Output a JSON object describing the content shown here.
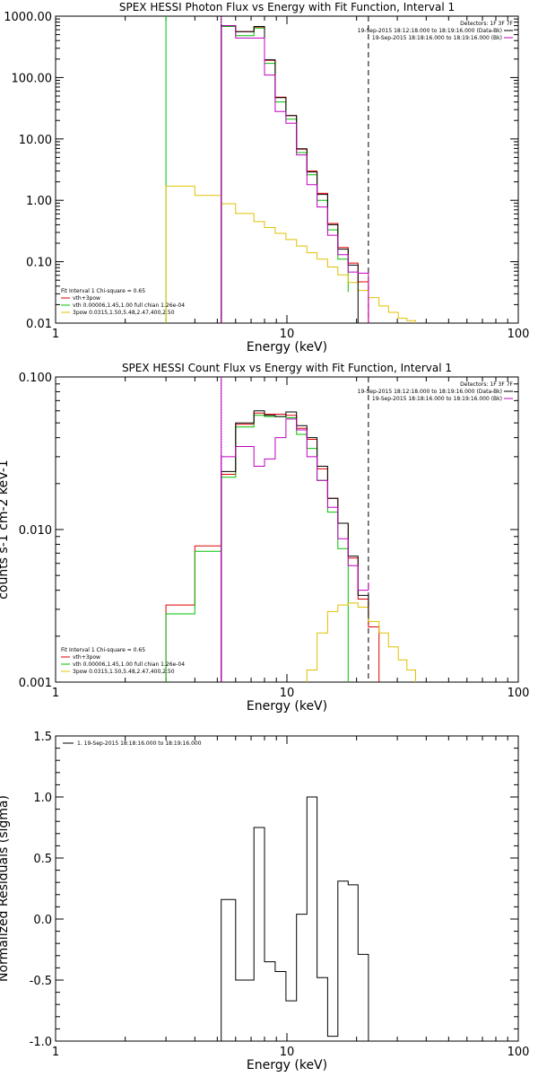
{
  "chart_data": [
    {
      "type": "line",
      "title": "SPEX HESSI Photon Flux vs Energy with Fit Function, Interval 1",
      "xlabel": "Energy (keV)",
      "xscale": "log",
      "yscale": "log",
      "xlim": [
        1,
        100
      ],
      "ylim": [
        0.01,
        1000
      ],
      "xticks": [
        "1",
        "10",
        "100"
      ],
      "yticks": [
        {
          "v": 1000,
          "label": "1000.00"
        },
        {
          "v": 100,
          "label": "100.00"
        },
        {
          "v": 10,
          "label": "10.00"
        },
        {
          "v": 1,
          "label": "1.00"
        },
        {
          "v": 0.1,
          "label": "0.10"
        },
        {
          "v": 0.01,
          "label": "0.01"
        }
      ],
      "vlines": [
        {
          "x": 3.0,
          "color": "#00c000",
          "style": "solid"
        },
        {
          "x": 5.2,
          "color": "#c000c0",
          "style": "solid"
        },
        {
          "x": 5.2,
          "color": "#000000",
          "style": "dotted"
        },
        {
          "x": 22.5,
          "color": "#000000",
          "style": "dashed"
        }
      ],
      "legend_top": [
        {
          "text": "Detectors: 1F 3F 7F",
          "color": "",
          "line": false
        },
        {
          "text": "19-Sep-2015 18:12:18.000 to 18:19:16.000 (Data-Bk)",
          "color": "#000000",
          "line": true
        },
        {
          "text": "19-Sep-2015 18:18:16.000 to 18:19:16.000 (Bk)",
          "color": "#c000c0",
          "line": true
        }
      ],
      "legend_bottom": [
        {
          "text": "Fit Interval 1    Chi-square = 0.65",
          "color": "",
          "line": false
        },
        {
          "text": "vth+3pow",
          "color": "#e00000",
          "line": true
        },
        {
          "text": "vth 0.00006,1.45,1.00  full chian 1.26e-04",
          "color": "#00c000",
          "line": true
        },
        {
          "text": "3pow 0.0315,1.50,5.48,2.47,400,2.50",
          "color": "#e0c000",
          "line": true
        }
      ],
      "series": [
        {
          "name": "vth+3pow",
          "color": "#e00000",
          "edges": [
            5.2,
            6.0,
            7.2,
            8.0,
            8.9,
            9.9,
            11.0,
            12.2,
            13.5,
            15.0,
            16.6,
            18.4,
            20.3,
            22.5
          ],
          "values": [
            680,
            560,
            650,
            190,
            48,
            24,
            6.8,
            3.0,
            1.3,
            0.42,
            0.17,
            0.095,
            0.047
          ]
        },
        {
          "name": "vth",
          "color": "#00c000",
          "edges": [
            5.2,
            6.0,
            7.2,
            8.0,
            8.9,
            9.9,
            11.0,
            12.2,
            13.5,
            15.0,
            16.6,
            18.4
          ],
          "values": [
            680,
            480,
            640,
            170,
            40,
            21,
            6.0,
            2.6,
            1.0,
            0.33,
            0.11,
            0.032
          ]
        },
        {
          "name": "3pow",
          "color": "#e0c000",
          "edges": [
            3.0,
            4.0,
            5.2,
            6.0,
            7.2,
            8.0,
            8.9,
            9.9,
            11.0,
            12.2,
            13.5,
            15.0,
            16.6,
            18.4,
            20.3,
            22.5,
            25.0,
            27.5,
            30.3,
            33.0,
            36.0
          ],
          "values": [
            1.7,
            1.2,
            0.88,
            0.61,
            0.45,
            0.36,
            0.29,
            0.23,
            0.18,
            0.14,
            0.11,
            0.082,
            0.061,
            0.046,
            0.034,
            0.026,
            0.019,
            0.015,
            0.012,
            0.011
          ]
        },
        {
          "name": "Data-Bk",
          "color": "#000000",
          "edges": [
            5.2,
            6.0,
            7.2,
            8.0,
            8.9,
            9.9,
            11.0,
            12.2,
            13.5,
            15.0,
            16.6,
            18.4,
            20.3
          ],
          "values": [
            700,
            560,
            680,
            195,
            47,
            24,
            6.9,
            2.9,
            1.25,
            0.4,
            0.16,
            0.088
          ]
        },
        {
          "name": "Bk",
          "color": "#c000c0",
          "edges": [
            5.2,
            6.0,
            7.2,
            8.0,
            8.9,
            9.9,
            11.0,
            12.2,
            13.5,
            15.0,
            16.6,
            18.4,
            20.3,
            22.5
          ],
          "values": [
            700,
            440,
            440,
            110,
            28,
            18,
            5.5,
            1.8,
            0.78,
            0.27,
            0.13,
            0.068,
            0.065
          ]
        }
      ]
    },
    {
      "type": "line",
      "title": "SPEX HESSI Count Flux vs Energy with Fit Function, Interval 1",
      "xlabel": "Energy (keV)",
      "ylabel": "counts s-1 cm-2 keV-1",
      "xscale": "log",
      "yscale": "log",
      "xlim": [
        1,
        100
      ],
      "ylim": [
        0.001,
        0.1
      ],
      "xticks": [
        "1",
        "10",
        "100"
      ],
      "yticks": [
        {
          "v": 0.1,
          "label": "0.100"
        },
        {
          "v": 0.01,
          "label": "0.010"
        },
        {
          "v": 0.001,
          "label": "0.001"
        }
      ],
      "vlines": [
        {
          "x": 5.2,
          "color": "#000000",
          "style": "dotted"
        },
        {
          "x": 5.2,
          "color": "#c000c0",
          "style": "solid"
        },
        {
          "x": 22.5,
          "color": "#000000",
          "style": "dashed"
        }
      ],
      "legend_top": [
        {
          "text": "Detectors: 1F 3F 7F",
          "color": "",
          "line": false
        },
        {
          "text": "19-Sep-2015 18:12:18.000 to 18:19:16.000 (Data-Bk)",
          "color": "#000000",
          "line": true
        },
        {
          "text": "19-Sep-2015 18:18:16.000 to 18:19:16.000 (Bk)",
          "color": "#c000c0",
          "line": true
        }
      ],
      "legend_bottom": [
        {
          "text": "Fit Interval 1    Chi-square = 0.65",
          "color": "",
          "line": false
        },
        {
          "text": "vth+3pow",
          "color": "#e00000",
          "line": true
        },
        {
          "text": "vth 0.00006,1.45,1.00  full chian 1.26e-04",
          "color": "#00c000",
          "line": true
        },
        {
          "text": "3pow 0.0315,1.50,5.48,2.47,400,2.50",
          "color": "#e0c000",
          "line": true
        }
      ],
      "series": [
        {
          "name": "vth+3pow",
          "color": "#e00000",
          "edges": [
            3.0,
            4.0,
            5.2,
            6.0,
            7.2,
            8.0,
            8.9,
            9.9,
            11.0,
            12.2,
            13.5,
            15.0,
            16.6,
            18.4,
            20.3,
            22.5,
            25.0
          ],
          "values": [
            0.0032,
            0.0078,
            0.023,
            0.049,
            0.058,
            0.057,
            0.057,
            0.056,
            0.046,
            0.039,
            0.025,
            0.016,
            0.011,
            0.0065,
            0.0035,
            0.0023
          ]
        },
        {
          "name": "vth",
          "color": "#00c000",
          "edges": [
            3.0,
            4.0,
            5.2,
            6.0,
            7.2,
            8.0,
            8.9,
            9.9,
            11.0,
            12.2,
            13.5,
            15.0,
            16.6,
            18.4
          ],
          "values": [
            0.0028,
            0.0072,
            0.022,
            0.047,
            0.056,
            0.055,
            0.055,
            0.054,
            0.042,
            0.034,
            0.021,
            0.013,
            0.0075
          ]
        },
        {
          "name": "3pow",
          "color": "#e0c000",
          "edges": [
            12.2,
            13.5,
            15.0,
            16.6,
            18.4,
            20.3,
            22.5,
            25.0,
            27.5,
            30.3,
            33.0,
            36.0
          ],
          "values": [
            0.0012,
            0.0021,
            0.0029,
            0.0032,
            0.0033,
            0.0031,
            0.0025,
            0.0021,
            0.0017,
            0.0014,
            0.0012
          ]
        },
        {
          "name": "Data-Bk",
          "color": "#000000",
          "edges": [
            5.2,
            6.0,
            7.2,
            8.0,
            8.9,
            9.9,
            11.0,
            12.2,
            13.5,
            15.0,
            16.6,
            18.4,
            20.3,
            22.5
          ],
          "values": [
            0.024,
            0.05,
            0.06,
            0.056,
            0.055,
            0.059,
            0.048,
            0.04,
            0.026,
            0.016,
            0.011,
            0.0067,
            0.0037,
            0.0026
          ]
        },
        {
          "name": "Bk",
          "color": "#c000c0",
          "edges": [
            5.2,
            6.0,
            7.2,
            8.0,
            8.9,
            9.9,
            11.0,
            12.2,
            13.5,
            15.0,
            16.6,
            18.4,
            20.3,
            22.5
          ],
          "values": [
            0.03,
            0.035,
            0.026,
            0.029,
            0.04,
            0.053,
            0.045,
            0.03,
            0.021,
            0.014,
            0.0087,
            0.0058,
            0.004,
            0.0045
          ]
        }
      ]
    },
    {
      "type": "line",
      "title": "",
      "xlabel": "Energy (keV)",
      "ylabel": "Normalized Residuals (sigma)",
      "xscale": "log",
      "yscale": "linear",
      "xlim": [
        1,
        100
      ],
      "ylim": [
        -1.0,
        1.5
      ],
      "xticks": [
        "1",
        "10",
        "100"
      ],
      "yticks": [
        {
          "v": 1.5,
          "label": "1.5"
        },
        {
          "v": 1.0,
          "label": "1.0"
        },
        {
          "v": 0.5,
          "label": "0.5"
        },
        {
          "v": 0.0,
          "label": "0.0"
        },
        {
          "v": -0.5,
          "label": "-0.5"
        },
        {
          "v": -1.0,
          "label": "-1.0"
        }
      ],
      "legend_top": [
        {
          "text": "1. 19-Sep-2015 18:18:16.000 to 18:19:16.000",
          "color": "#000000",
          "line": true
        }
      ],
      "series": [
        {
          "name": "1. 19-Sep-2015 18:18:16.000 to 18:19:16.000",
          "color": "#000000",
          "edges": [
            5.2,
            6.0,
            7.2,
            8.0,
            8.9,
            9.9,
            11.0,
            12.2,
            13.5,
            15.0,
            16.6,
            18.4,
            20.3,
            22.5
          ],
          "values": [
            0.16,
            -0.5,
            0.75,
            -0.35,
            -0.43,
            -0.67,
            0.04,
            1.0,
            -0.48,
            -0.96,
            0.31,
            0.28,
            -0.29
          ]
        }
      ]
    }
  ]
}
